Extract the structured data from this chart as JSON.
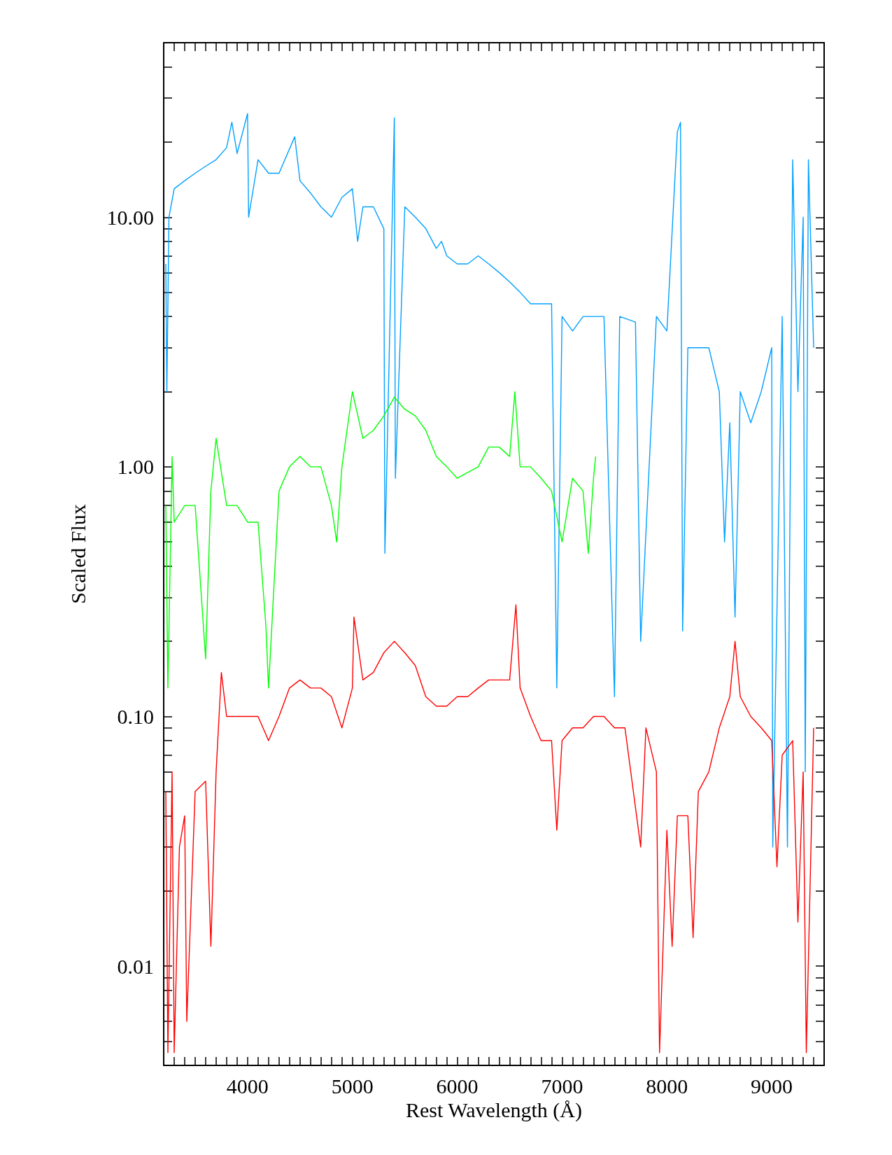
{
  "chart_data": {
    "type": "line",
    "xlabel": "Rest Wavelength (Å)",
    "ylabel": "Scaled Flux",
    "log": "y",
    "xlim": [
      3200,
      9500
    ],
    "ylim": [
      0.004,
      50
    ],
    "xticks": [
      {
        "value": 3300,
        "label": null
      },
      {
        "value": 3400,
        "label": null
      },
      {
        "value": 3500,
        "label": null
      },
      {
        "value": 3600,
        "label": null
      },
      {
        "value": 3700,
        "label": null
      },
      {
        "value": 3800,
        "label": null
      },
      {
        "value": 3900,
        "label": null
      },
      4000,
      {
        "value": 4100,
        "label": null
      },
      {
        "value": 4200,
        "label": null
      },
      {
        "value": 4300,
        "label": null
      },
      {
        "value": 4400,
        "label": null
      },
      {
        "value": 4500,
        "label": null
      },
      {
        "value": 4600,
        "label": null
      },
      {
        "value": 4700,
        "label": null
      },
      {
        "value": 4800,
        "label": null
      },
      {
        "value": 4900,
        "label": null
      },
      5000,
      {
        "value": 5100,
        "label": null
      },
      {
        "value": 5200,
        "label": null
      },
      {
        "value": 5300,
        "label": null
      },
      {
        "value": 5400,
        "label": null
      },
      {
        "value": 5500,
        "label": null
      },
      {
        "value": 5600,
        "label": null
      },
      {
        "value": 5700,
        "label": null
      },
      {
        "value": 5800,
        "label": null
      },
      {
        "value": 5900,
        "label": null
      },
      6000,
      {
        "value": 6100,
        "label": null
      },
      {
        "value": 6200,
        "label": null
      },
      {
        "value": 6300,
        "label": null
      },
      {
        "value": 6400,
        "label": null
      },
      {
        "value": 6500,
        "label": null
      },
      {
        "value": 6600,
        "label": null
      },
      {
        "value": 6700,
        "label": null
      },
      {
        "value": 6800,
        "label": null
      },
      {
        "value": 6900,
        "label": null
      },
      7000,
      {
        "value": 7100,
        "label": null
      },
      {
        "value": 7200,
        "label": null
      },
      {
        "value": 7300,
        "label": null
      },
      {
        "value": 7400,
        "label": null
      },
      {
        "value": 7500,
        "label": null
      },
      {
        "value": 7600,
        "label": null
      },
      {
        "value": 7700,
        "label": null
      },
      {
        "value": 7800,
        "label": null
      },
      {
        "value": 7900,
        "label": null
      },
      8000,
      {
        "value": 8100,
        "label": null
      },
      {
        "value": 8200,
        "label": null
      },
      {
        "value": 8300,
        "label": null
      },
      {
        "value": 8400,
        "label": null
      },
      {
        "value": 8500,
        "label": null
      },
      {
        "value": 8600,
        "label": null
      },
      {
        "value": 8700,
        "label": null
      },
      {
        "value": 8800,
        "label": null
      },
      {
        "value": 8900,
        "label": null
      },
      9000,
      {
        "value": 9100,
        "label": null
      },
      {
        "value": 9200,
        "label": null
      },
      {
        "value": 9300,
        "label": null
      },
      {
        "value": 9400,
        "label": null
      }
    ],
    "yticks": [
      {
        "value": 0.005,
        "label": null
      },
      {
        "value": 0.006,
        "label": null
      },
      {
        "value": 0.007,
        "label": null
      },
      {
        "value": 0.008,
        "label": null
      },
      {
        "value": 0.009,
        "label": null
      },
      {
        "value": 0.01,
        "label": "0.01"
      },
      {
        "value": 0.02,
        "label": null
      },
      {
        "value": 0.03,
        "label": null
      },
      {
        "value": 0.04,
        "label": null
      },
      {
        "value": 0.05,
        "label": null
      },
      {
        "value": 0.06,
        "label": null
      },
      {
        "value": 0.07,
        "label": null
      },
      {
        "value": 0.08,
        "label": null
      },
      {
        "value": 0.09,
        "label": null
      },
      {
        "value": 0.1,
        "label": "0.10"
      },
      {
        "value": 0.2,
        "label": null
      },
      {
        "value": 0.3,
        "label": null
      },
      {
        "value": 0.4,
        "label": null
      },
      {
        "value": 0.5,
        "label": null
      },
      {
        "value": 0.6,
        "label": null
      },
      {
        "value": 0.7,
        "label": null
      },
      {
        "value": 0.8,
        "label": null
      },
      {
        "value": 0.9,
        "label": null
      },
      {
        "value": 1,
        "label": "1.00"
      },
      {
        "value": 2,
        "label": null
      },
      {
        "value": 3,
        "label": null
      },
      {
        "value": 4,
        "label": null
      },
      {
        "value": 5,
        "label": null
      },
      {
        "value": 6,
        "label": null
      },
      {
        "value": 7,
        "label": null
      },
      {
        "value": 8,
        "label": null
      },
      {
        "value": 9,
        "label": null
      },
      {
        "value": 10,
        "label": "10.00"
      },
      {
        "value": 20,
        "label": null
      },
      {
        "value": 30,
        "label": null
      },
      {
        "value": 40,
        "label": null
      },
      {
        "value": 50,
        "label": null
      }
    ],
    "series": [
      {
        "color": "#00a0ff",
        "x": [
          3220,
          3230,
          3250,
          3300,
          3400,
          3500,
          3600,
          3700,
          3800,
          3850,
          3900,
          4000,
          4010,
          4100,
          4200,
          4300,
          4450,
          4500,
          4600,
          4700,
          4800,
          4900,
          5000,
          5050,
          5100,
          5200,
          5300,
          5310,
          5380,
          5400,
          5410,
          5500,
          5600,
          5700,
          5800,
          5850,
          5900,
          6000,
          6100,
          6200,
          6300,
          6400,
          6500,
          6600,
          6700,
          6800,
          6900,
          6950,
          7000,
          7100,
          7200,
          7400,
          7500,
          7550,
          7700,
          7750,
          7900,
          8000,
          8100,
          8130,
          8150,
          8200,
          8300,
          8400,
          8500,
          8550,
          8600,
          8650,
          8700,
          8800,
          8900,
          9000,
          9010,
          9100,
          9150,
          9200,
          9250,
          9300,
          9320,
          9350,
          9400
        ],
        "values": [
          6.5,
          2,
          10,
          13,
          14,
          15,
          16,
          17,
          19,
          24,
          18,
          26,
          10,
          17,
          15,
          15,
          21,
          14,
          12.5,
          11,
          10,
          12,
          13,
          8,
          11,
          11,
          9,
          0.45,
          10,
          25,
          0.9,
          11,
          10,
          9,
          7.5,
          8,
          7,
          6.5,
          6.5,
          7,
          6.5,
          6,
          5.5,
          5,
          4.5,
          4.5,
          4.5,
          0.13,
          4,
          3.5,
          4,
          4,
          0.12,
          4,
          3.8,
          0.2,
          4,
          3.5,
          22,
          24,
          0.22,
          3,
          3,
          3,
          2,
          0.5,
          1.5,
          0.25,
          2,
          1.5,
          2,
          3,
          0.03,
          4,
          0.03,
          17,
          2,
          10,
          0.06,
          17,
          3
        ]
      },
      {
        "color": "#00ff00",
        "x": [
          3220,
          3240,
          3280,
          3300,
          3400,
          3500,
          3600,
          3650,
          3700,
          3800,
          3900,
          4000,
          4100,
          4175,
          4200,
          4300,
          4400,
          4500,
          4600,
          4700,
          4800,
          4850,
          4900,
          5000,
          5100,
          5200,
          5300,
          5400,
          5500,
          5600,
          5700,
          5800,
          5900,
          6000,
          6100,
          6200,
          6300,
          6400,
          6500,
          6550,
          6600,
          6700,
          6800,
          6900,
          7000,
          7100,
          7200,
          7250,
          7300,
          7320
        ],
        "values": [
          0.7,
          0.13,
          1.1,
          0.6,
          0.7,
          0.7,
          0.17,
          0.8,
          1.3,
          0.7,
          0.7,
          0.6,
          0.6,
          0.23,
          0.13,
          0.8,
          1,
          1.1,
          1,
          1,
          0.7,
          0.5,
          1,
          2,
          1.3,
          1.4,
          1.6,
          1.9,
          1.7,
          1.6,
          1.4,
          1.1,
          1,
          0.9,
          0.95,
          1,
          1.2,
          1.2,
          1.1,
          2,
          1,
          1,
          0.9,
          0.8,
          0.5,
          0.9,
          0.8,
          0.45,
          0.9,
          1.1
        ]
      },
      {
        "color": "#ff0000",
        "x": [
          3220,
          3240,
          3280,
          3300,
          3350,
          3400,
          3420,
          3500,
          3600,
          3650,
          3700,
          3750,
          3800,
          3900,
          4000,
          4100,
          4200,
          4300,
          4400,
          4500,
          4600,
          4700,
          4800,
          4900,
          5000,
          5015,
          5100,
          5200,
          5300,
          5400,
          5500,
          5600,
          5700,
          5800,
          5900,
          6000,
          6100,
          6200,
          6300,
          6400,
          6500,
          6560,
          6600,
          6700,
          6800,
          6900,
          6950,
          7000,
          7100,
          7200,
          7300,
          7400,
          7500,
          7600,
          7750,
          7800,
          7900,
          7930,
          8000,
          8050,
          8100,
          8200,
          8250,
          8300,
          8400,
          8500,
          8600,
          8650,
          8700,
          8800,
          8900,
          9000,
          9050,
          9100,
          9200,
          9250,
          9300,
          9330,
          9400
        ],
        "values": [
          0.05,
          0.0045,
          0.06,
          0.0045,
          0.03,
          0.04,
          0.006,
          0.05,
          0.055,
          0.012,
          0.06,
          0.15,
          0.1,
          0.1,
          0.1,
          0.1,
          0.08,
          0.1,
          0.13,
          0.14,
          0.13,
          0.13,
          0.12,
          0.09,
          0.13,
          0.25,
          0.14,
          0.15,
          0.18,
          0.2,
          0.18,
          0.16,
          0.12,
          0.11,
          0.11,
          0.12,
          0.12,
          0.13,
          0.14,
          0.14,
          0.14,
          0.28,
          0.13,
          0.1,
          0.08,
          0.08,
          0.035,
          0.08,
          0.09,
          0.09,
          0.1,
          0.1,
          0.09,
          0.09,
          0.03,
          0.09,
          0.06,
          0.0045,
          0.035,
          0.012,
          0.04,
          0.04,
          0.013,
          0.05,
          0.06,
          0.09,
          0.12,
          0.2,
          0.12,
          0.1,
          0.09,
          0.08,
          0.025,
          0.07,
          0.08,
          0.015,
          0.06,
          0.0045,
          0.09
        ]
      }
    ]
  }
}
